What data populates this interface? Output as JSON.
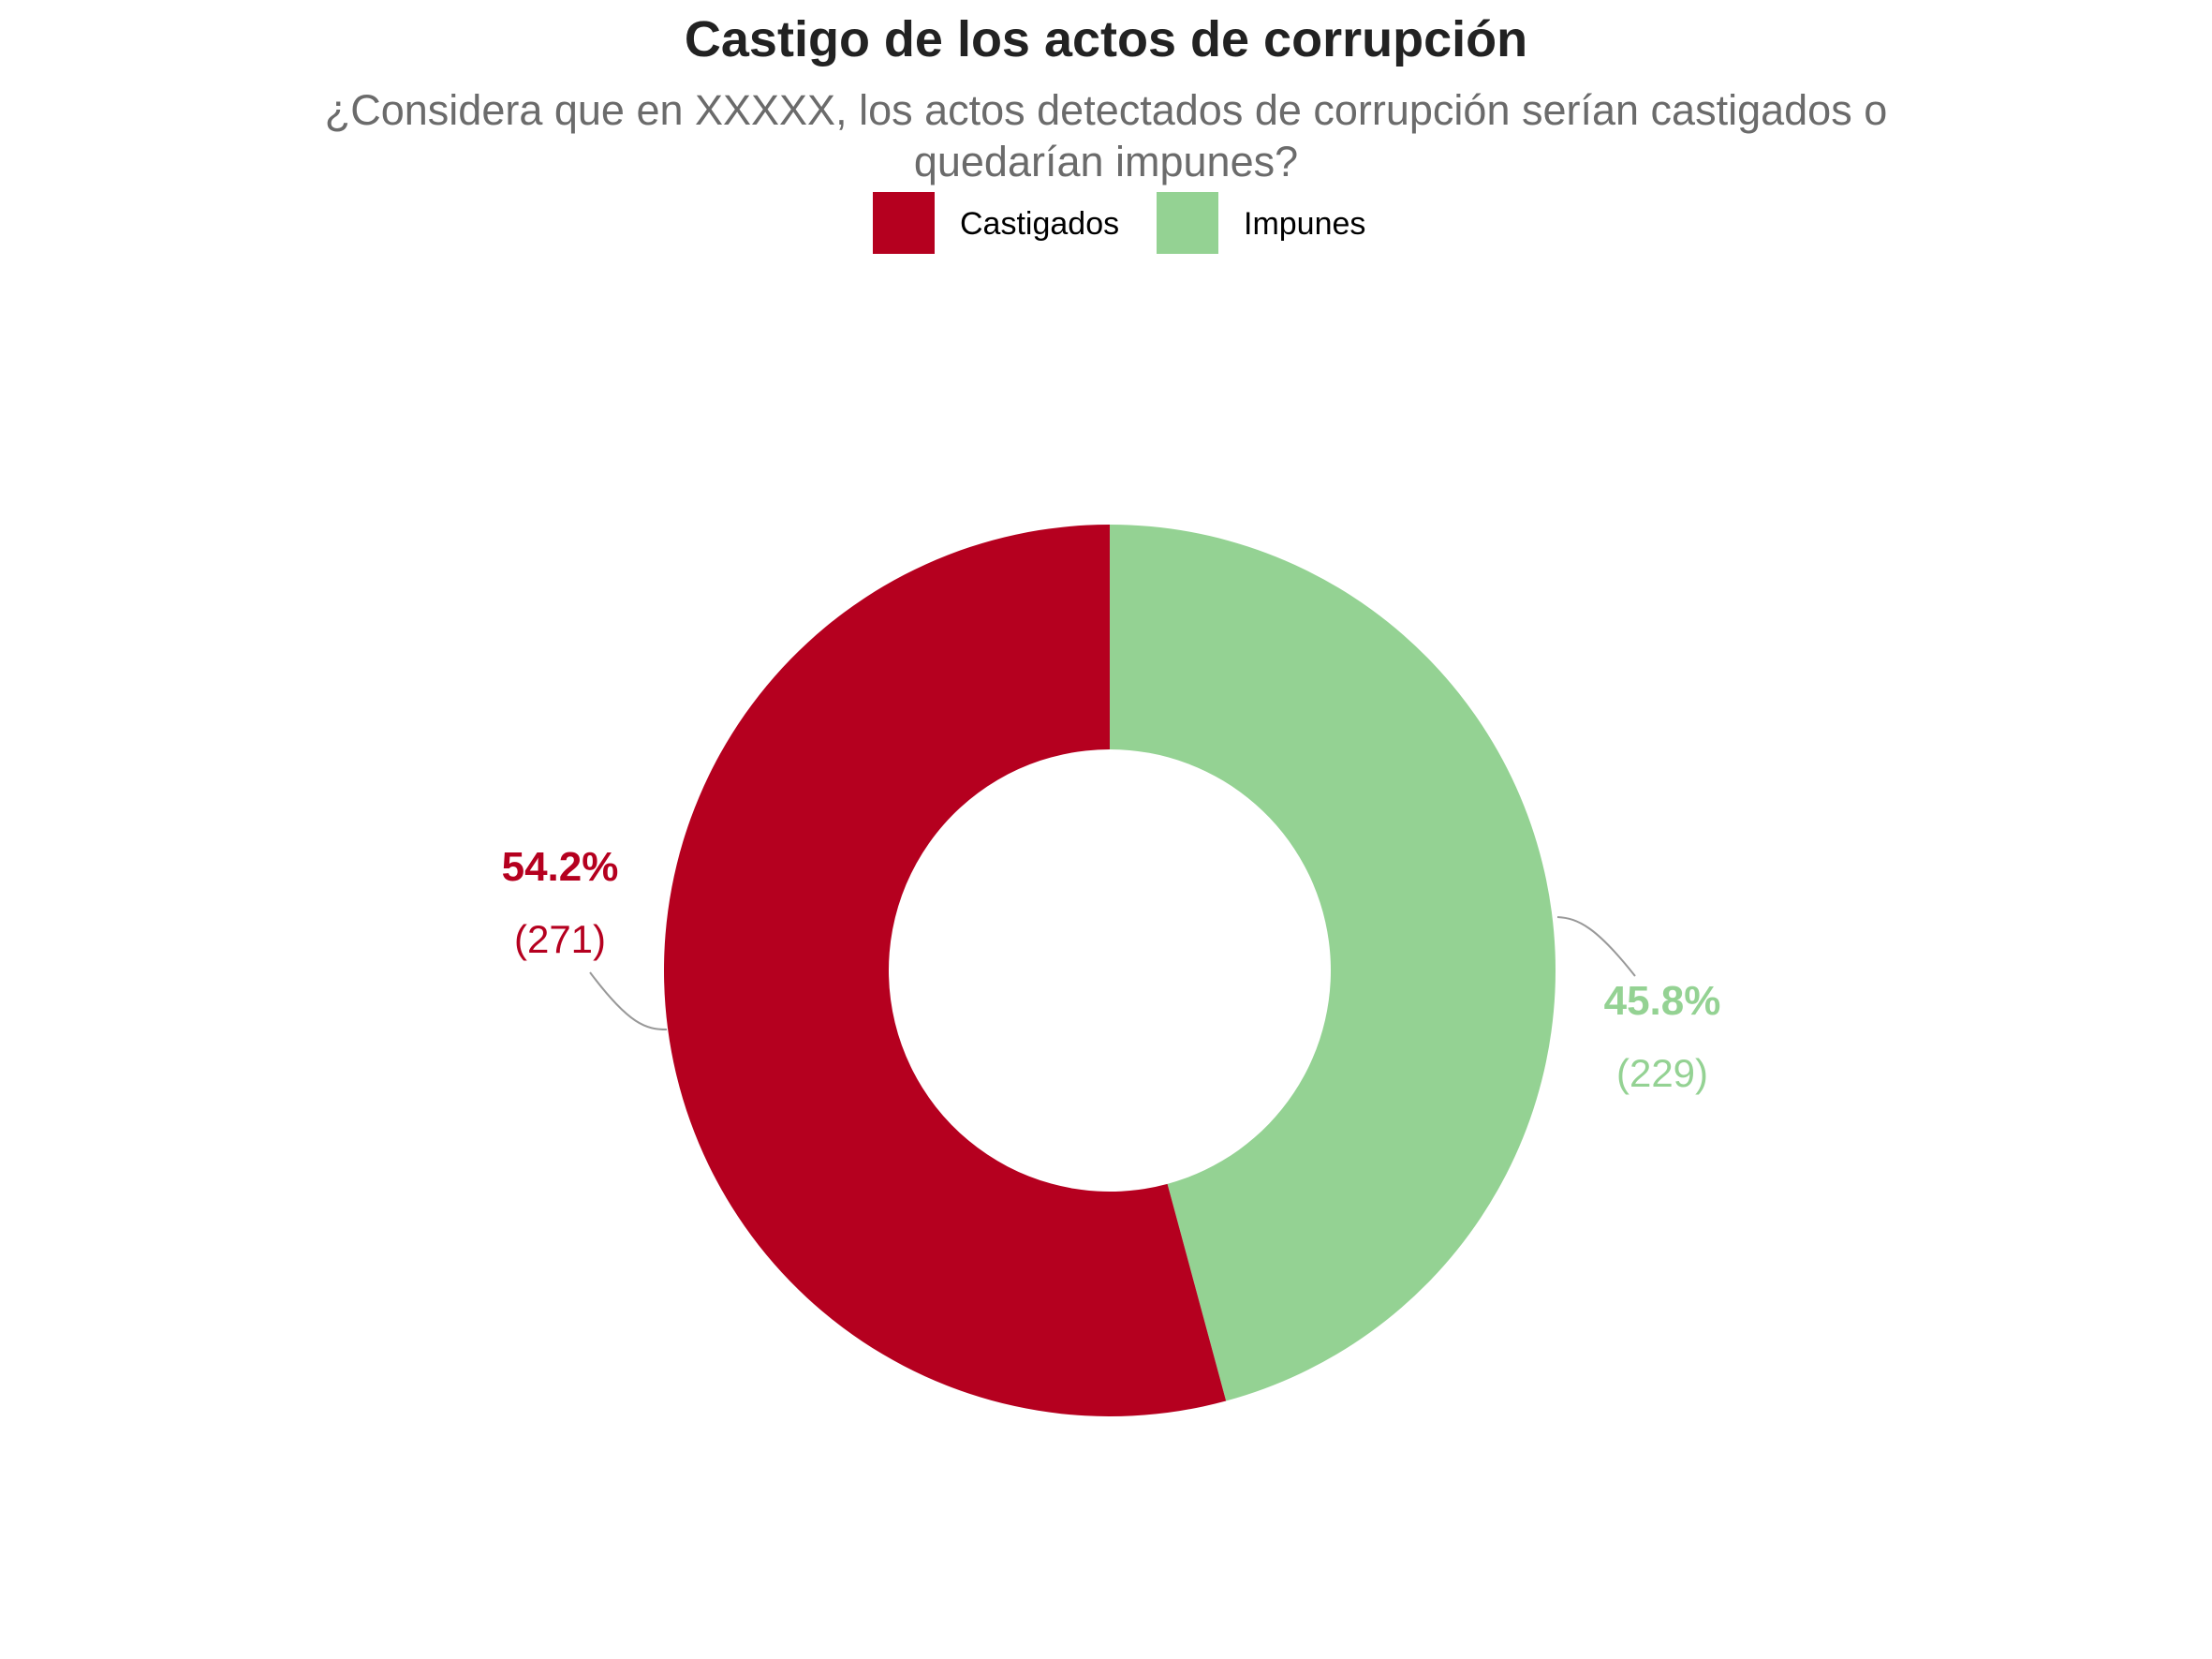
{
  "chart_data": {
    "type": "pie",
    "variant": "donut",
    "title": "Castigo de los actos de corrupción",
    "subtitle_lines": [
      "¿Considera que en XXXXX, los actos detectados de corrupción serían castigados o",
      "quedarían impunes?"
    ],
    "legend": {
      "placement": "top",
      "entries": [
        "Castigados",
        "Impunes"
      ]
    },
    "slices": [
      {
        "label": "Castigados",
        "percent": 54.2,
        "percent_text": "54.2%",
        "count": 271,
        "count_text": "(271)",
        "color": "#B5001F"
      },
      {
        "label": "Impunes",
        "percent": 45.8,
        "percent_text": "45.8%",
        "count": 229,
        "count_text": "(229)",
        "color": "#94D293"
      }
    ]
  },
  "colors": {
    "title": "#222222",
    "subtitle": "#6B6B6B",
    "legend_text": "#000000",
    "leader_line": "#999999",
    "background": "#FFFFFF"
  }
}
